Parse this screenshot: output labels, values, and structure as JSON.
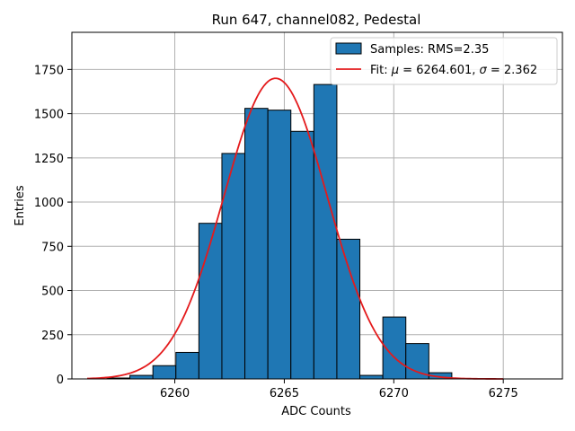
{
  "chart_data": {
    "type": "bar",
    "title": "Run 647, channel082, Pedestal",
    "xlabel": "ADC Counts",
    "ylabel": "Entries",
    "xlim": [
      6255.3,
      6277.7
    ],
    "ylim": [
      0,
      1960
    ],
    "xticks": [
      6260,
      6265,
      6270,
      6275
    ],
    "yticks": [
      0,
      250,
      500,
      750,
      1000,
      1250,
      1500,
      1750
    ],
    "grid": true,
    "bin_width": 1.05,
    "bins": [
      {
        "left": 6256.9,
        "value": 5
      },
      {
        "left": 6257.95,
        "value": 20
      },
      {
        "left": 6259.0,
        "value": 75
      },
      {
        "left": 6260.05,
        "value": 150
      },
      {
        "left": 6261.1,
        "value": 880
      },
      {
        "left": 6262.15,
        "value": 1275
      },
      {
        "left": 6263.2,
        "value": 1530
      },
      {
        "left": 6264.25,
        "value": 1520
      },
      {
        "left": 6265.3,
        "value": 1400
      },
      {
        "left": 6266.35,
        "value": 1665
      },
      {
        "left": 6267.4,
        "value": 790
      },
      {
        "left": 6268.45,
        "value": 20
      },
      {
        "left": 6269.5,
        "value": 350
      },
      {
        "left": 6270.55,
        "value": 200
      },
      {
        "left": 6271.6,
        "value": 35
      },
      {
        "left": 6272.65,
        "value": 2
      }
    ],
    "fit": {
      "mu": 6264.601,
      "sigma": 2.362,
      "amplitude": 1700,
      "x_start": 6256.0,
      "x_end": 6275.0
    },
    "legend": {
      "position": "top-right",
      "entries": [
        {
          "label": "Samples: RMS=2.35",
          "kind": "patch"
        },
        {
          "label_prefix": "Fit: ",
          "mu_symbol": "μ",
          "mu_text": " = 6264.601, ",
          "sigma_symbol": "σ",
          "sigma_text": " = 2.362",
          "kind": "line"
        }
      ]
    },
    "colors": {
      "bar_fill": "#1f77b4",
      "bar_edge": "#000000",
      "fit_line": "#e41a1c",
      "grid": "#b0b0b0"
    }
  }
}
